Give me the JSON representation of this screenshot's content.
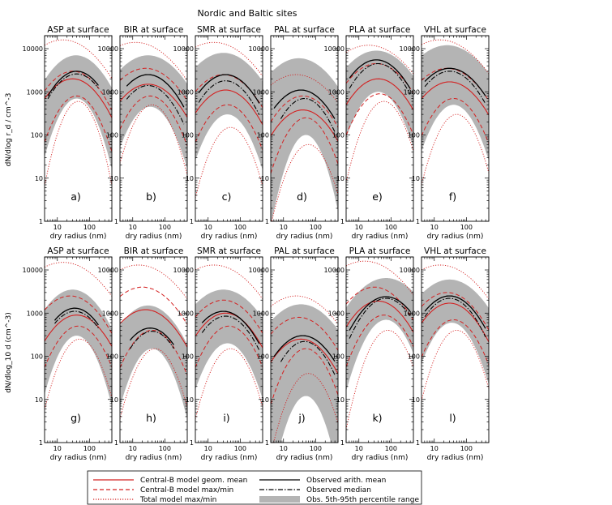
{
  "figure_title": "Nordic and Baltic sites",
  "chart_data": {
    "type": "line",
    "title": "Nordic and Baltic sites",
    "xlabel": "dry radius (nm)",
    "ylabel_top": "dN/dlog r_d / cm^-3",
    "ylabel_bottom": "dN/dlog_10 d (cm^-3)",
    "xscale": "log",
    "yscale": "log",
    "xlim": [
      4,
      500
    ],
    "ylim": [
      1,
      20000
    ],
    "x_ticks": [
      "10",
      "100"
    ],
    "y_ticks": [
      "1",
      "10",
      "100",
      "1000",
      "10000"
    ],
    "legend": {
      "placement": "bottom",
      "entries": [
        {
          "label": "Central-B model geom. mean",
          "color": "#d42020",
          "style": "solid"
        },
        {
          "label": "Central-B model max/min",
          "color": "#d42020",
          "style": "dashed"
        },
        {
          "label": "Total model max/min",
          "color": "#d42020",
          "style": "dotted"
        },
        {
          "label": "Observed arith. mean",
          "color": "#000000",
          "style": "solid"
        },
        {
          "label": "Observed median",
          "color": "#000000",
          "style": "dashdot"
        },
        {
          "label": "Obs. 5th-95th percentile range",
          "color": "#b4b4b4",
          "style": "fill"
        }
      ]
    },
    "panels": [
      {
        "row": 0,
        "col": 0,
        "title": "ASP at surface",
        "label": "a)",
        "obs_mean": {
          "peak": 3000,
          "r": 40,
          "w": 0.55,
          "r0": 5,
          "r1": 200
        },
        "obs_median": {
          "peak": 2600,
          "r": 40,
          "w": 0.55,
          "r0": 5,
          "r1": 200
        },
        "band_hi": {
          "peak": 7000,
          "r": 38,
          "w": 0.6
        },
        "band_lo": {
          "peak": 700,
          "r": 40,
          "w": 0.4
        },
        "model_mean": {
          "peak": 2000,
          "r": 30,
          "w": 0.6
        },
        "model_max": {
          "peak": 3000,
          "r": 30,
          "w": 0.6
        },
        "model_min": {
          "peak": 800,
          "r": 40,
          "w": 0.45
        },
        "total_max": {
          "peak": 16000,
          "r": 15,
          "w": 0.75
        },
        "total_min": {
          "peak": 600,
          "r": 45,
          "w": 0.35
        }
      },
      {
        "row": 0,
        "col": 1,
        "title": "BIR at surface",
        "label": "b)",
        "obs_mean": {
          "peak": 2500,
          "r": 30,
          "w": 0.6,
          "r0": 6,
          "r1": 400
        },
        "obs_median": {
          "peak": 1400,
          "r": 30,
          "w": 0.55,
          "r0": 6,
          "r1": 400
        },
        "band_hi": {
          "peak": 7000,
          "r": 30,
          "w": 0.7
        },
        "band_lo": {
          "peak": 450,
          "r": 35,
          "w": 0.45
        },
        "model_mean": {
          "peak": 1500,
          "r": 30,
          "w": 0.65
        },
        "model_max": {
          "peak": 3500,
          "r": 25,
          "w": 0.7
        },
        "model_min": {
          "peak": 800,
          "r": 35,
          "w": 0.5
        },
        "total_max": {
          "peak": 14000,
          "r": 12,
          "w": 0.8
        },
        "total_min": {
          "peak": 500,
          "r": 40,
          "w": 0.4
        }
      },
      {
        "row": 0,
        "col": 2,
        "title": "SMR at surface",
        "label": "c)",
        "obs_mean": {
          "peak": 2500,
          "r": 35,
          "w": 0.6,
          "r0": 5,
          "r1": 400
        },
        "obs_median": {
          "peak": 1800,
          "r": 35,
          "w": 0.55,
          "r0": 5,
          "r1": 400
        },
        "band_hi": {
          "peak": 8000,
          "r": 30,
          "w": 0.7
        },
        "band_lo": {
          "peak": 300,
          "r": 40,
          "w": 0.45
        },
        "model_mean": {
          "peak": 1100,
          "r": 35,
          "w": 0.6
        },
        "model_max": {
          "peak": 2500,
          "r": 30,
          "w": 0.65
        },
        "model_min": {
          "peak": 500,
          "r": 40,
          "w": 0.5
        },
        "total_max": {
          "peak": 14000,
          "r": 15,
          "w": 0.8
        },
        "total_min": {
          "peak": 150,
          "r": 50,
          "w": 0.4
        }
      },
      {
        "row": 0,
        "col": 3,
        "title": "PAL at surface",
        "label": "d)",
        "obs_mean": {
          "peak": 1100,
          "r": 35,
          "w": 0.6,
          "r0": 5,
          "r1": 400
        },
        "obs_median": {
          "peak": 700,
          "r": 45,
          "w": 0.5,
          "r0": 8,
          "r1": 400
        },
        "band_hi": {
          "peak": 6000,
          "r": 30,
          "w": 0.7
        },
        "band_lo": {
          "peak": 100,
          "r": 50,
          "w": 0.35
        },
        "model_mean": {
          "peak": 380,
          "r": 40,
          "w": 0.6
        },
        "model_max": {
          "peak": 800,
          "r": 40,
          "w": 0.6
        },
        "model_min": {
          "peak": 250,
          "r": 50,
          "w": 0.45
        },
        "total_max": {
          "peak": 2500,
          "r": 25,
          "w": 0.75
        },
        "total_min": {
          "peak": 60,
          "r": 60,
          "w": 0.4
        }
      },
      {
        "row": 0,
        "col": 4,
        "title": "PLA at surface",
        "label": "e)",
        "obs_mean": {
          "peak": 5500,
          "r": 35,
          "w": 0.6,
          "r0": 5,
          "r1": 400
        },
        "obs_median": {
          "peak": 4500,
          "r": 40,
          "w": 0.55,
          "r0": 5,
          "r1": 400
        },
        "band_hi": {
          "peak": 9000,
          "r": 35,
          "w": 0.7
        },
        "band_lo": {
          "peak": 1000,
          "r": 40,
          "w": 0.45
        },
        "model_mean": {
          "peak": 2000,
          "r": 40,
          "w": 0.6
        },
        "model_max": {
          "peak": 4500,
          "r": 35,
          "w": 0.65
        },
        "model_min": {
          "peak": 900,
          "r": 45,
          "w": 0.5
        },
        "total_max": {
          "peak": 12000,
          "r": 20,
          "w": 0.8
        },
        "total_min": {
          "peak": 600,
          "r": 60,
          "w": 0.4
        }
      },
      {
        "row": 0,
        "col": 5,
        "title": "VHL at surface",
        "label": "f)",
        "obs_mean": {
          "peak": 3500,
          "r": 30,
          "w": 0.65,
          "r0": 5,
          "r1": 400
        },
        "obs_median": {
          "peak": 3000,
          "r": 30,
          "w": 0.6,
          "r0": 5,
          "r1": 400
        },
        "band_hi": {
          "peak": 12000,
          "r": 25,
          "w": 0.75
        },
        "band_lo": {
          "peak": 500,
          "r": 40,
          "w": 0.45
        },
        "model_mean": {
          "peak": 1700,
          "r": 30,
          "w": 0.65
        },
        "model_max": {
          "peak": 3500,
          "r": 25,
          "w": 0.7
        },
        "model_min": {
          "peak": 700,
          "r": 40,
          "w": 0.5
        },
        "total_max": {
          "peak": 16000,
          "r": 15,
          "w": 0.8
        },
        "total_min": {
          "peak": 300,
          "r": 50,
          "w": 0.4
        }
      },
      {
        "row": 1,
        "col": 0,
        "title": "ASP at surface",
        "label": "g)",
        "obs_mean": {
          "peak": 1300,
          "r": 35,
          "w": 0.55,
          "r0": 8,
          "r1": 200
        },
        "obs_median": {
          "peak": 1100,
          "r": 35,
          "w": 0.55,
          "r0": 8,
          "r1": 200
        },
        "band_hi": {
          "peak": 3500,
          "r": 30,
          "w": 0.6
        },
        "band_lo": {
          "peak": 300,
          "r": 40,
          "w": 0.4
        },
        "model_mean": {
          "peak": 900,
          "r": 40,
          "w": 0.6
        },
        "model_max": {
          "peak": 2500,
          "r": 25,
          "w": 0.65
        },
        "model_min": {
          "peak": 500,
          "r": 45,
          "w": 0.5
        },
        "total_max": {
          "peak": 15000,
          "r": 15,
          "w": 0.8
        },
        "total_min": {
          "peak": 250,
          "r": 50,
          "w": 0.4
        }
      },
      {
        "row": 1,
        "col": 1,
        "title": "BIR at surface",
        "label": "h)",
        "obs_mean": {
          "peak": 450,
          "r": 35,
          "w": 0.55,
          "r0": 8,
          "r1": 200
        },
        "obs_median": {
          "peak": 380,
          "r": 40,
          "w": 0.5,
          "r0": 8,
          "r1": 200
        },
        "band_hi": {
          "peak": 1500,
          "r": 30,
          "w": 0.6
        },
        "band_lo": {
          "peak": 150,
          "r": 40,
          "w": 0.4
        },
        "model_mean": {
          "peak": 1200,
          "r": 25,
          "w": 0.65
        },
        "model_max": {
          "peak": 4000,
          "r": 20,
          "w": 0.7
        },
        "model_min": {
          "peak": 400,
          "r": 40,
          "w": 0.5
        },
        "total_max": {
          "peak": 13000,
          "r": 15,
          "w": 0.8
        },
        "total_min": {
          "peak": 150,
          "r": 50,
          "w": 0.4
        }
      },
      {
        "row": 1,
        "col": 2,
        "title": "SMR at surface",
        "label": "i)",
        "obs_mean": {
          "peak": 1100,
          "r": 30,
          "w": 0.6,
          "r0": 6,
          "r1": 400
        },
        "obs_median": {
          "peak": 850,
          "r": 35,
          "w": 0.55,
          "r0": 6,
          "r1": 400
        },
        "band_hi": {
          "peak": 3500,
          "r": 30,
          "w": 0.7
        },
        "band_lo": {
          "peak": 200,
          "r": 40,
          "w": 0.45
        },
        "model_mean": {
          "peak": 1000,
          "r": 35,
          "w": 0.6
        },
        "model_max": {
          "peak": 2000,
          "r": 30,
          "w": 0.65
        },
        "model_min": {
          "peak": 500,
          "r": 45,
          "w": 0.5
        },
        "total_max": {
          "peak": 13000,
          "r": 15,
          "w": 0.8
        },
        "total_min": {
          "peak": 150,
          "r": 50,
          "w": 0.4
        }
      },
      {
        "row": 1,
        "col": 3,
        "title": "PAL at surface",
        "label": "j)",
        "obs_mean": {
          "peak": 300,
          "r": 40,
          "w": 0.6,
          "r0": 5,
          "r1": 400
        },
        "obs_median": {
          "peak": 220,
          "r": 45,
          "w": 0.5,
          "r0": 8,
          "r1": 400
        },
        "band_hi": {
          "peak": 1600,
          "r": 35,
          "w": 0.7
        },
        "band_lo": {
          "peak": 12,
          "r": 50,
          "w": 0.35
        },
        "model_mean": {
          "peak": 250,
          "r": 35,
          "w": 0.6
        },
        "model_max": {
          "peak": 800,
          "r": 30,
          "w": 0.65
        },
        "model_min": {
          "peak": 150,
          "r": 50,
          "w": 0.45
        },
        "total_max": {
          "peak": 2500,
          "r": 25,
          "w": 0.75
        },
        "total_min": {
          "peak": 40,
          "r": 60,
          "w": 0.4
        }
      },
      {
        "row": 1,
        "col": 4,
        "title": "PLA at surface",
        "label": "k)",
        "obs_mean": {
          "peak": 2400,
          "r": 70,
          "w": 0.6,
          "r0": 5,
          "r1": 400
        },
        "obs_median": {
          "peak": 2200,
          "r": 70,
          "w": 0.55,
          "r0": 5,
          "r1": 400
        },
        "band_hi": {
          "peak": 6500,
          "r": 70,
          "w": 0.7
        },
        "band_lo": {
          "peak": 700,
          "r": 70,
          "w": 0.45
        },
        "model_mean": {
          "peak": 1900,
          "r": 40,
          "w": 0.6
        },
        "model_max": {
          "peak": 4000,
          "r": 30,
          "w": 0.65
        },
        "model_min": {
          "peak": 900,
          "r": 60,
          "w": 0.5
        },
        "total_max": {
          "peak": 16000,
          "r": 15,
          "w": 0.8
        },
        "total_min": {
          "peak": 400,
          "r": 80,
          "w": 0.4
        }
      },
      {
        "row": 1,
        "col": 5,
        "title": "VHL at surface",
        "label": "l)",
        "obs_mean": {
          "peak": 2500,
          "r": 30,
          "w": 0.6,
          "r0": 5,
          "r1": 400
        },
        "obs_median": {
          "peak": 2200,
          "r": 30,
          "w": 0.55,
          "r0": 5,
          "r1": 400
        },
        "band_hi": {
          "peak": 6000,
          "r": 30,
          "w": 0.7
        },
        "band_lo": {
          "peak": 600,
          "r": 35,
          "w": 0.45
        },
        "model_mean": {
          "peak": 1700,
          "r": 30,
          "w": 0.6
        },
        "model_max": {
          "peak": 3000,
          "r": 25,
          "w": 0.65
        },
        "model_min": {
          "peak": 700,
          "r": 40,
          "w": 0.5
        },
        "total_max": {
          "peak": 13000,
          "r": 15,
          "w": 0.8
        },
        "total_min": {
          "peak": 400,
          "r": 50,
          "w": 0.4
        }
      }
    ]
  },
  "colors": {
    "model": "#d42020",
    "obs": "#000000",
    "band": "#b4b4b4"
  }
}
